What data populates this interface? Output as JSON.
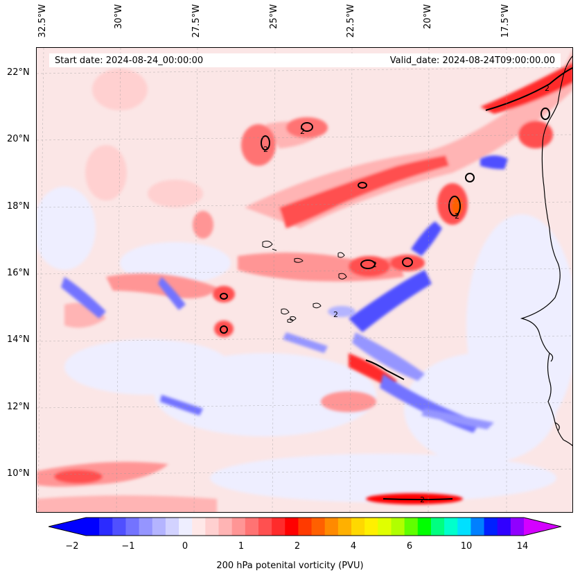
{
  "header": {
    "start_date": "Start date: 2024-08-24_00:00:00",
    "valid_date": "Valid_date: 2024-08-24T09:00:00.00"
  },
  "longitude_labels": [
    "32.5°W",
    "30°W",
    "27.5°W",
    "25°W",
    "22.5°W",
    "20°W",
    "17.5°W"
  ],
  "latitude_labels": [
    "22°N",
    "20°N",
    "18°N",
    "16°N",
    "14°N",
    "12°N",
    "10°N"
  ],
  "contour_label": "2",
  "colorbar": {
    "title": "200 hPa potenital vorticity (PVU)",
    "tick_labels": [
      "−2",
      "−1",
      "0",
      "1",
      "2",
      "4",
      "6",
      "10",
      "14"
    ],
    "colors": [
      "#0000ff",
      "#2b2bff",
      "#5050ff",
      "#7373ff",
      "#9595ff",
      "#b4b4ff",
      "#d2d2ff",
      "#eeeeff",
      "#ffe8e8",
      "#ffd0d0",
      "#ffb4b4",
      "#ff9595",
      "#ff7373",
      "#ff5050",
      "#ff2b2b",
      "#ff0000",
      "#ff3a00",
      "#ff6000",
      "#ff8a00",
      "#ffb000",
      "#ffd800",
      "#fff000",
      "#e0ff00",
      "#b0ff00",
      "#60ff00",
      "#00ff00",
      "#00ff80",
      "#00ffcc",
      "#00e0ff",
      "#0080ff",
      "#0020ff",
      "#3000ff",
      "#9000ff"
    ],
    "under_color": "#0000ff",
    "over_color": "#d400ff"
  },
  "colors": {
    "background_pv": "#fbe6e6",
    "negative_pv": "#3a3aff",
    "positive_pv": "#ff2020",
    "coastline": "#000000"
  }
}
